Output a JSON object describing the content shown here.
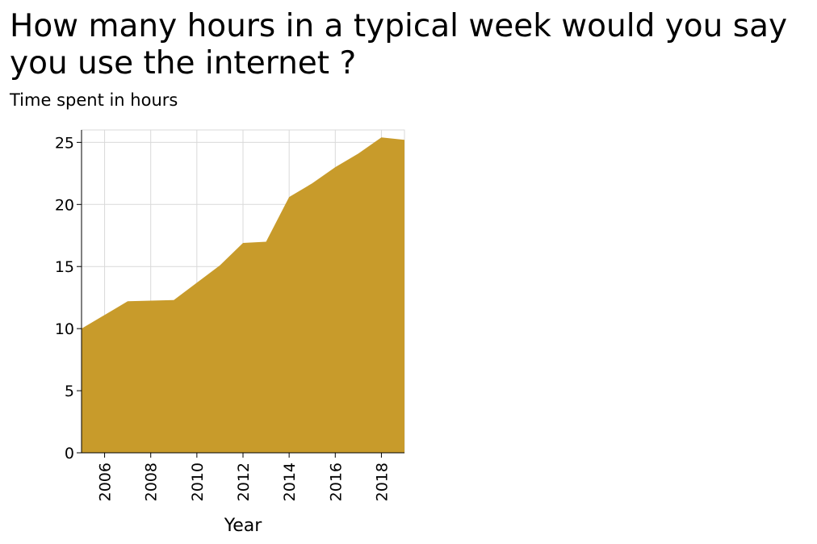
{
  "chart_data": {
    "type": "area",
    "title": "How many hours in a typical week would you say you use the internet ?",
    "ylabel": "Time spent in hours",
    "xlabel": "Year",
    "x": [
      2005,
      2006,
      2007,
      2008,
      2009,
      2010,
      2011,
      2012,
      2013,
      2014,
      2015,
      2016,
      2017,
      2018,
      2019
    ],
    "series": [
      {
        "values": [
          10.0,
          11.1,
          12.2,
          12.25,
          12.3,
          13.7,
          15.1,
          16.9,
          17.0,
          20.6,
          21.7,
          23.0,
          24.1,
          25.4,
          25.2
        ]
      }
    ],
    "xlim": [
      2005,
      2019
    ],
    "ylim": [
      0,
      26
    ],
    "xticks": [
      2006,
      2008,
      2010,
      2012,
      2014,
      2016,
      2018
    ],
    "yticks": [
      0,
      5,
      10,
      15,
      20,
      25
    ],
    "grid": true,
    "legend": "none",
    "fill_color": "#c89b2b",
    "grid_color": "#d9d9d9"
  }
}
